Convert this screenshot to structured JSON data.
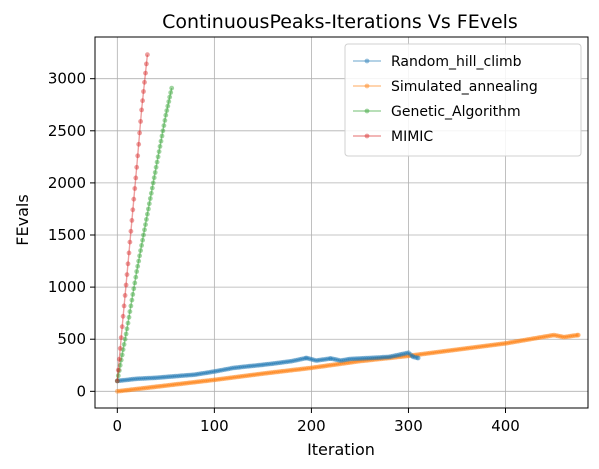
{
  "chart_data": {
    "type": "line",
    "title": "ContinuousPeaks-Iterations Vs FEvels",
    "xlabel": "Iteration",
    "ylabel": "FEvals",
    "xlim": [
      -23,
      485
    ],
    "ylim": [
      -160,
      3400
    ],
    "x_ticks": [
      0,
      100,
      200,
      300,
      400
    ],
    "y_ticks": [
      0,
      500,
      1000,
      1500,
      2000,
      2500,
      3000
    ],
    "grid": true,
    "legend_position": "top-right",
    "series": [
      {
        "name": "Random_hill_climb",
        "color": "#1f77b4",
        "points": [
          [
            0,
            100
          ],
          [
            20,
            120
          ],
          [
            40,
            130
          ],
          [
            60,
            145
          ],
          [
            80,
            160
          ],
          [
            100,
            190
          ],
          [
            120,
            225
          ],
          [
            140,
            245
          ],
          [
            160,
            265
          ],
          [
            180,
            290
          ],
          [
            195,
            320
          ],
          [
            205,
            295
          ],
          [
            220,
            315
          ],
          [
            230,
            295
          ],
          [
            240,
            310
          ],
          [
            260,
            320
          ],
          [
            280,
            330
          ],
          [
            300,
            370
          ],
          [
            305,
            330
          ],
          [
            310,
            320
          ]
        ]
      },
      {
        "name": "Simulated_annealing",
        "color": "#ff7f0e",
        "points": [
          [
            0,
            0
          ],
          [
            50,
            55
          ],
          [
            100,
            110
          ],
          [
            150,
            170
          ],
          [
            200,
            225
          ],
          [
            250,
            290
          ],
          [
            300,
            340
          ],
          [
            350,
            400
          ],
          [
            400,
            460
          ],
          [
            450,
            540
          ],
          [
            460,
            520
          ],
          [
            475,
            540
          ]
        ]
      },
      {
        "name": "Genetic_Algorithm",
        "color": "#2ca02c",
        "points": [
          [
            0,
            100
          ],
          [
            10,
            600
          ],
          [
            20,
            1150
          ],
          [
            30,
            1650
          ],
          [
            40,
            2150
          ],
          [
            50,
            2650
          ],
          [
            56,
            2910
          ]
        ]
      },
      {
        "name": "MIMIC",
        "color": "#d62728",
        "points": [
          [
            0,
            100
          ],
          [
            5,
            620
          ],
          [
            10,
            1120
          ],
          [
            15,
            1640
          ],
          [
            20,
            2150
          ],
          [
            25,
            2700
          ],
          [
            31,
            3230
          ]
        ]
      }
    ]
  }
}
